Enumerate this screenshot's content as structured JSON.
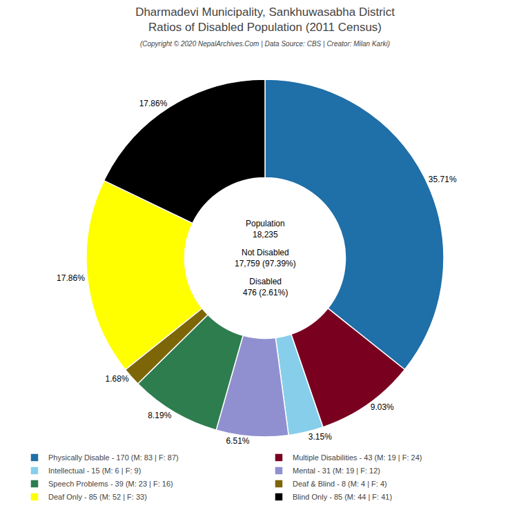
{
  "chart_data": {
    "type": "pie",
    "title": "Dharmadevi Municipality, Sankhuwasabha District\nRatios of Disabled Population (2011 Census)",
    "subtitle": "(Copyright © 2020 NepalArchives.Com | Data Source: CBS | Creator: Milan Karki)",
    "categories": [
      "Physically Disable - 170 (M: 83 | F: 87)",
      "Multiple Disabilities - 43 (M: 19 | F: 24)",
      "Intellectual - 15 (M: 6 | F: 9)",
      "Mental - 31 (M: 19 | F: 12)",
      "Speech Problems - 39 (M: 23 | F: 16)",
      "Deaf & Blind - 8 (M: 4 | F: 4)",
      "Deaf Only - 85 (M: 52 | F: 33)",
      "Blind Only - 85 (M: 44 | F: 41)"
    ],
    "values": [
      35.71,
      9.03,
      3.15,
      6.51,
      8.19,
      1.68,
      17.86,
      17.86
    ],
    "value_labels": [
      "35.71%",
      "9.03%",
      "3.15%",
      "6.51%",
      "8.19%",
      "1.68%",
      "17.86%",
      "17.86%"
    ],
    "colors": [
      "#1f6fa8",
      "#7a0020",
      "#87ceeb",
      "#9090d0",
      "#2e7d4f",
      "#7d6608",
      "#ffff00",
      "#000000"
    ],
    "data_labels": true,
    "legend": "bottom",
    "annotations": [
      "Population\n18,235",
      "Not Disabled\n17,759 (97.39%)",
      "Disabled\n476 (2.61%)"
    ]
  }
}
